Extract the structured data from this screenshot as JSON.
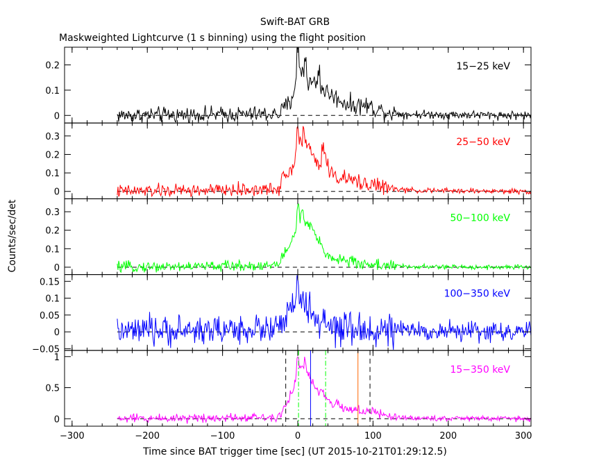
{
  "chart_data": {
    "type": "line",
    "title": "Swift-BAT GRB",
    "subtitle": "Maskweighted Lightcurve (1 s binning) using the flight position",
    "xlabel": "Time since BAT trigger time [sec] (UT 2015-10-21T01:29:12.5)",
    "ylabel": "Counts/sec/det",
    "xlim": [
      -310,
      310
    ],
    "x_ticks": [
      "−300",
      "−200",
      "−100",
      "0",
      "100",
      "200",
      "300"
    ],
    "data_range": [
      -240,
      310
    ],
    "grid": false,
    "panels": [
      {
        "band": "15−25 keV",
        "color": "#000000",
        "ylim": [
          -0.03,
          0.27
        ],
        "yticks": [
          0,
          0.1,
          0.2
        ],
        "ytick_labels": [
          "0",
          "0.1",
          "0.2"
        ],
        "noise_pre": 0.022,
        "noise_post": 0.012,
        "envelope": [
          [
            -240,
            0.0
          ],
          [
            -25,
            0.005
          ],
          [
            -18,
            0.03
          ],
          [
            -10,
            0.05
          ],
          [
            -5,
            0.1
          ],
          [
            0,
            0.2
          ],
          [
            5,
            0.18
          ],
          [
            15,
            0.13
          ],
          [
            25,
            0.13
          ],
          [
            35,
            0.1
          ],
          [
            50,
            0.07
          ],
          [
            70,
            0.04
          ],
          [
            90,
            0.04
          ],
          [
            110,
            0.02
          ],
          [
            140,
            0.005
          ],
          [
            310,
            0.0
          ]
        ],
        "spikes": [
          {
            "x": 0,
            "y": 0.26
          },
          {
            "x": 10,
            "y": 0.23
          },
          {
            "x": 28,
            "y": 0.18
          }
        ]
      },
      {
        "band": "25−50 keV",
        "color": "#ff0000",
        "ylim": [
          -0.04,
          0.37
        ],
        "yticks": [
          0,
          0.1,
          0.2,
          0.3
        ],
        "ytick_labels": [
          "0",
          "0.1",
          "0.2",
          "0.3"
        ],
        "noise_pre": 0.025,
        "noise_post": 0.01,
        "envelope": [
          [
            -240,
            0.0
          ],
          [
            -25,
            0.01
          ],
          [
            -20,
            0.1
          ],
          [
            -10,
            0.1
          ],
          [
            -3,
            0.2
          ],
          [
            0,
            0.28
          ],
          [
            10,
            0.26
          ],
          [
            20,
            0.2
          ],
          [
            30,
            0.12
          ],
          [
            35,
            0.2
          ],
          [
            45,
            0.09
          ],
          [
            60,
            0.07
          ],
          [
            80,
            0.05
          ],
          [
            100,
            0.04
          ],
          [
            120,
            0.015
          ],
          [
            150,
            0.005
          ],
          [
            310,
            0.0
          ]
        ],
        "spikes": [
          {
            "x": 0,
            "y": 0.35
          },
          {
            "x": 8,
            "y": 0.32
          },
          {
            "x": 33,
            "y": 0.26
          }
        ]
      },
      {
        "band": "50−100 keV",
        "color": "#00ff00",
        "ylim": [
          -0.04,
          0.37
        ],
        "yticks": [
          0,
          0.1,
          0.2,
          0.3
        ],
        "ytick_labels": [
          "0",
          "0.1",
          "0.2",
          "0.3"
        ],
        "noise_pre": 0.02,
        "noise_post": 0.009,
        "envelope": [
          [
            -240,
            0.0
          ],
          [
            -28,
            0.01
          ],
          [
            -20,
            0.06
          ],
          [
            -10,
            0.12
          ],
          [
            -3,
            0.2
          ],
          [
            0,
            0.28
          ],
          [
            10,
            0.24
          ],
          [
            20,
            0.2
          ],
          [
            30,
            0.12
          ],
          [
            40,
            0.06
          ],
          [
            60,
            0.04
          ],
          [
            80,
            0.02
          ],
          [
            120,
            0.01
          ],
          [
            150,
            0.002
          ],
          [
            310,
            0.0
          ]
        ],
        "spikes": [
          {
            "x": 0,
            "y": 0.33
          },
          {
            "x": 6,
            "y": 0.3
          }
        ]
      },
      {
        "band": "100−350 keV",
        "color": "#0000ff",
        "ylim": [
          -0.055,
          0.17
        ],
        "yticks": [
          -0.05,
          0,
          0.05,
          0.1,
          0.15
        ],
        "ytick_labels": [
          "−0.05",
          "0",
          "0.05",
          "0.1",
          "0.15"
        ],
        "noise_pre": 0.03,
        "noise_post": 0.02,
        "envelope": [
          [
            -240,
            0.0
          ],
          [
            -25,
            0.01
          ],
          [
            -15,
            0.04
          ],
          [
            -5,
            0.08
          ],
          [
            0,
            0.12
          ],
          [
            8,
            0.08
          ],
          [
            20,
            0.05
          ],
          [
            35,
            0.02
          ],
          [
            50,
            0.005
          ],
          [
            310,
            0.0
          ]
        ],
        "spikes": [
          {
            "x": 0,
            "y": 0.15
          }
        ]
      },
      {
        "band": "15−350 keV",
        "color": "#ff00ff",
        "ylim": [
          -0.12,
          1.1
        ],
        "yticks": [
          0,
          0.5,
          1
        ],
        "ytick_labels": [
          "0",
          "0.5",
          "1"
        ],
        "noise_pre": 0.05,
        "noise_post": 0.03,
        "envelope": [
          [
            -240,
            0.0
          ],
          [
            -28,
            0.03
          ],
          [
            -22,
            0.1
          ],
          [
            -12,
            0.3
          ],
          [
            -5,
            0.55
          ],
          [
            0,
            0.8
          ],
          [
            5,
            0.85
          ],
          [
            15,
            0.7
          ],
          [
            22,
            0.5
          ],
          [
            28,
            0.45
          ],
          [
            35,
            0.38
          ],
          [
            45,
            0.25
          ],
          [
            60,
            0.18
          ],
          [
            80,
            0.14
          ],
          [
            100,
            0.1
          ],
          [
            120,
            0.04
          ],
          [
            150,
            0.01
          ],
          [
            310,
            0.0
          ]
        ],
        "spikes": [
          {
            "x": 0,
            "y": 0.98
          },
          {
            "x": 10,
            "y": 0.9
          }
        ],
        "markers": [
          {
            "x": -16,
            "color": "#000000",
            "style": "dashed"
          },
          {
            "x": 96,
            "color": "#000000",
            "style": "dashed"
          },
          {
            "x": 1,
            "color": "#00ff00",
            "style": "dashdot"
          },
          {
            "x": 37,
            "color": "#00ff00",
            "style": "dashdot"
          },
          {
            "x": 17,
            "color": "#0000ff",
            "style": "solid"
          },
          {
            "x": 80,
            "color": "#ff6600",
            "style": "solid"
          }
        ]
      }
    ]
  }
}
